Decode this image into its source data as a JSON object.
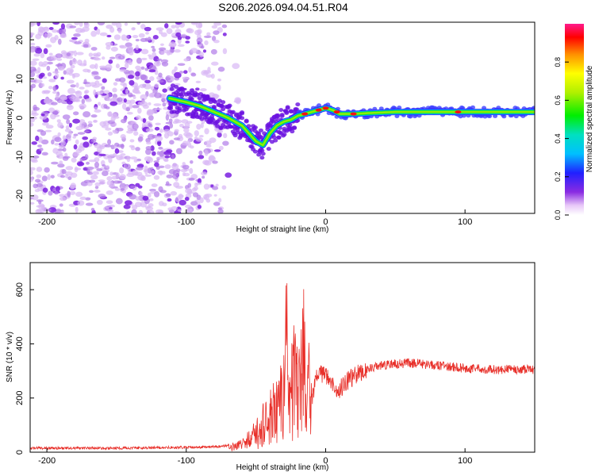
{
  "title": "S206.2026.094.04.51.R04",
  "chart_data": [
    {
      "type": "heatmap",
      "xlabel": "Height of straight line (km)",
      "ylabel": "Frequency (Hz)",
      "xlim": [
        -212,
        150
      ],
      "ylim": [
        -24.5,
        24.5
      ],
      "x_ticks": [
        -200,
        -100,
        0,
        100
      ],
      "y_ticks": [
        -20,
        -10,
        0,
        10,
        20
      ],
      "colorbar": {
        "label": "Normalized spectral amplitude",
        "range": [
          0,
          1
        ],
        "ticks": [
          0.0,
          0.2,
          0.4,
          0.6,
          0.8
        ]
      },
      "signal_track": {
        "x": [
          -112,
          -100,
          -90,
          -80,
          -70,
          -60,
          -55,
          -50,
          -45,
          -40,
          -35,
          -30,
          -25,
          -20,
          -15,
          -10,
          -5,
          0,
          5,
          10,
          20,
          30,
          50,
          80,
          100,
          120,
          150
        ],
        "freq": [
          5,
          4,
          3,
          1.5,
          0,
          -2,
          -4,
          -6,
          -7,
          -4,
          -2,
          -1,
          -0.5,
          0.5,
          1,
          1.5,
          2,
          2.5,
          2,
          1,
          1,
          1.2,
          1.5,
          1.5,
          1.5,
          1.5,
          1.5
        ]
      },
      "noise_region_x": [
        -212,
        -70
      ]
    },
    {
      "type": "line",
      "xlabel": "Height of straight line (km)",
      "ylabel": "SNR (10 * v/v)",
      "xlim": [
        -212,
        150
      ],
      "ylim": [
        0,
        700
      ],
      "x_ticks": [
        -200,
        -100,
        0,
        100
      ],
      "y_ticks": [
        0,
        200,
        400,
        600
      ],
      "series": [
        {
          "color": "#e8302a",
          "x": [
            -212,
            -150,
            -100,
            -80,
            -70,
            -60,
            -50,
            -45,
            -40,
            -35,
            -30,
            -28,
            -25,
            -22,
            -20,
            -15,
            -10,
            -5,
            0,
            5,
            10,
            15,
            20,
            30,
            40,
            50,
            60,
            80,
            100,
            120,
            150
          ],
          "values": [
            15,
            15,
            18,
            20,
            25,
            40,
            100,
            150,
            200,
            250,
            300,
            600,
            350,
            500,
            300,
            550,
            200,
            300,
            280,
            250,
            230,
            260,
            280,
            310,
            320,
            325,
            330,
            320,
            310,
            305,
            305
          ]
        }
      ]
    }
  ]
}
